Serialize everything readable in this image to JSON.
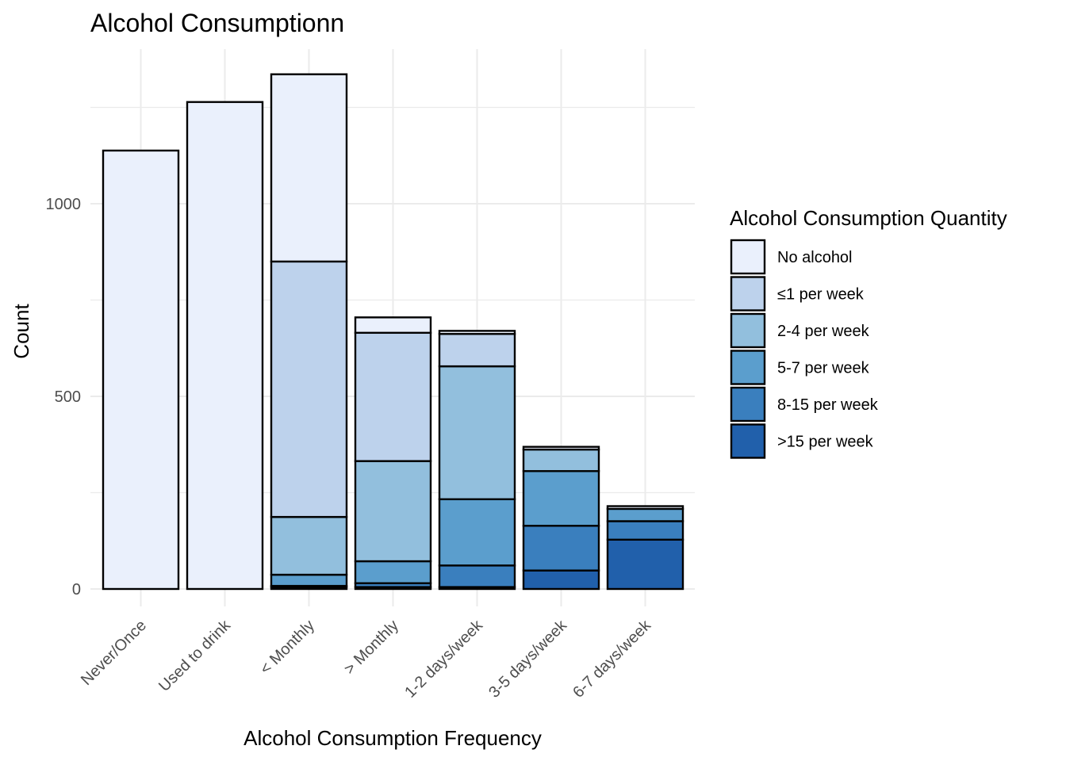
{
  "chart_data": {
    "type": "bar",
    "stacked": true,
    "title": "Alcohol Consumptionn",
    "xlabel": "Alcohol Consumption Frequency",
    "ylabel": "Count",
    "ylim": [
      0,
      1400
    ],
    "yticks": [
      0,
      500,
      1000
    ],
    "grid": true,
    "legend_position": "right",
    "legend_title": "Alcohol Consumption Quantity",
    "categories": [
      "Never/Once",
      "Used to drink",
      "< Monthly",
      "> Monthly",
      "1-2 days/week",
      "3-5 days/week",
      "6-7 days/week"
    ],
    "series": [
      {
        "name": ">15 per week",
        "color": "#2160AB",
        "values": [
          0,
          0,
          5,
          5,
          5,
          48,
          128
        ]
      },
      {
        "name": "8-15 per week",
        "color": "#3A7FBE",
        "values": [
          0,
          0,
          3,
          10,
          56,
          116,
          48
        ]
      },
      {
        "name": "5-7 per week",
        "color": "#5B9ECD",
        "values": [
          0,
          0,
          29,
          57,
          172,
          142,
          32
        ]
      },
      {
        "name": "2-4 per week",
        "color": "#92BFDD",
        "values": [
          0,
          0,
          150,
          260,
          345,
          56,
          0
        ]
      },
      {
        "name": "≤1 per week",
        "color": "#BDD2EC",
        "values": [
          0,
          0,
          663,
          333,
          84,
          0,
          0
        ]
      },
      {
        "name": "No alcohol",
        "color": "#EAF0FC",
        "values": [
          1138,
          1264,
          486,
          40,
          8,
          7,
          7
        ]
      }
    ]
  }
}
